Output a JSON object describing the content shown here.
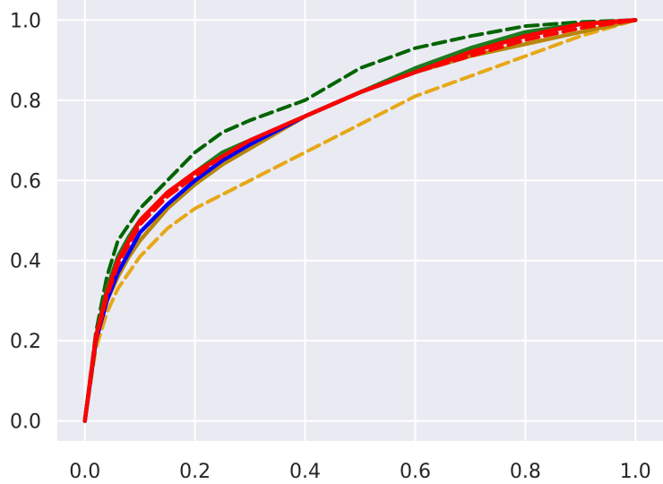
{
  "chart_data": {
    "type": "line",
    "title": "",
    "xlabel": "",
    "ylabel": "",
    "xlim": [
      -0.05,
      1.05
    ],
    "ylim": [
      -0.05,
      1.05
    ],
    "grid": true,
    "background": "#eaeaf2",
    "grid_color": "#ffffff",
    "xticks": [
      "0.0",
      "0.2",
      "0.4",
      "0.6",
      "0.8",
      "1.0"
    ],
    "yticks": [
      "0.0",
      "0.2",
      "0.4",
      "0.6",
      "0.8",
      "1.0"
    ],
    "series": [
      {
        "color": "#e6a817",
        "dash": true,
        "x": [
          0,
          0.02,
          0.04,
          0.06,
          0.08,
          0.1,
          0.15,
          0.2,
          0.3,
          0.4,
          0.5,
          0.6,
          0.7,
          0.8,
          0.9,
          1.0
        ],
        "y": [
          0,
          0.18,
          0.27,
          0.33,
          0.37,
          0.41,
          0.48,
          0.53,
          0.6,
          0.67,
          0.74,
          0.81,
          0.86,
          0.91,
          0.96,
          1.0
        ]
      },
      {
        "color": "#b8860b",
        "dash": false,
        "x": [
          0,
          0.02,
          0.04,
          0.06,
          0.08,
          0.1,
          0.15,
          0.2,
          0.25,
          0.3,
          0.4,
          0.5,
          0.6,
          0.7,
          0.8,
          0.9,
          1.0
        ],
        "y": [
          0,
          0.2,
          0.3,
          0.36,
          0.41,
          0.45,
          0.53,
          0.59,
          0.64,
          0.68,
          0.76,
          0.82,
          0.87,
          0.91,
          0.94,
          0.97,
          1.0
        ]
      },
      {
        "color": "#0000ff",
        "dash": false,
        "x": [
          0,
          0.02,
          0.04,
          0.06,
          0.08,
          0.1,
          0.15,
          0.2,
          0.25,
          0.3,
          0.4,
          0.5,
          0.6,
          0.7,
          0.8,
          0.9,
          1.0
        ],
        "y": [
          0,
          0.2,
          0.3,
          0.37,
          0.42,
          0.47,
          0.54,
          0.6,
          0.65,
          0.69,
          0.76,
          0.82,
          0.87,
          0.92,
          0.96,
          0.99,
          1.0
        ]
      },
      {
        "color": "#006400",
        "dash": true,
        "x": [
          0,
          0.02,
          0.04,
          0.06,
          0.08,
          0.1,
          0.15,
          0.2,
          0.25,
          0.3,
          0.4,
          0.45,
          0.5,
          0.6,
          0.7,
          0.8,
          0.9,
          1.0
        ],
        "y": [
          0,
          0.22,
          0.36,
          0.45,
          0.49,
          0.53,
          0.6,
          0.67,
          0.72,
          0.75,
          0.8,
          0.84,
          0.88,
          0.93,
          0.96,
          0.985,
          0.995,
          1.0
        ]
      },
      {
        "color": "#1e7b1e",
        "dash": false,
        "x": [
          0,
          0.02,
          0.04,
          0.06,
          0.08,
          0.1,
          0.15,
          0.2,
          0.25,
          0.3,
          0.4,
          0.5,
          0.6,
          0.7,
          0.8,
          0.9,
          1.0
        ],
        "y": [
          0,
          0.21,
          0.33,
          0.41,
          0.46,
          0.5,
          0.57,
          0.62,
          0.67,
          0.7,
          0.76,
          0.82,
          0.88,
          0.93,
          0.97,
          0.99,
          1.0
        ]
      },
      {
        "color": "#ff0000",
        "dash": true,
        "x": [
          0,
          0.02,
          0.04,
          0.06,
          0.08,
          0.1,
          0.15,
          0.2,
          0.25,
          0.3,
          0.4,
          0.45,
          0.5,
          0.6,
          0.7,
          0.8,
          0.9,
          1.0
        ],
        "y": [
          0,
          0.2,
          0.31,
          0.39,
          0.44,
          0.49,
          0.56,
          0.61,
          0.66,
          0.7,
          0.76,
          0.79,
          0.82,
          0.87,
          0.91,
          0.95,
          0.98,
          1.0
        ]
      },
      {
        "color": "#ff0000",
        "dash": false,
        "x": [
          0,
          0.02,
          0.04,
          0.06,
          0.08,
          0.1,
          0.15,
          0.2,
          0.25,
          0.3,
          0.4,
          0.5,
          0.6,
          0.7,
          0.8,
          0.9,
          1.0
        ],
        "y": [
          0,
          0.21,
          0.32,
          0.4,
          0.45,
          0.5,
          0.57,
          0.62,
          0.66,
          0.7,
          0.76,
          0.82,
          0.87,
          0.92,
          0.96,
          0.99,
          1.0
        ]
      }
    ]
  }
}
